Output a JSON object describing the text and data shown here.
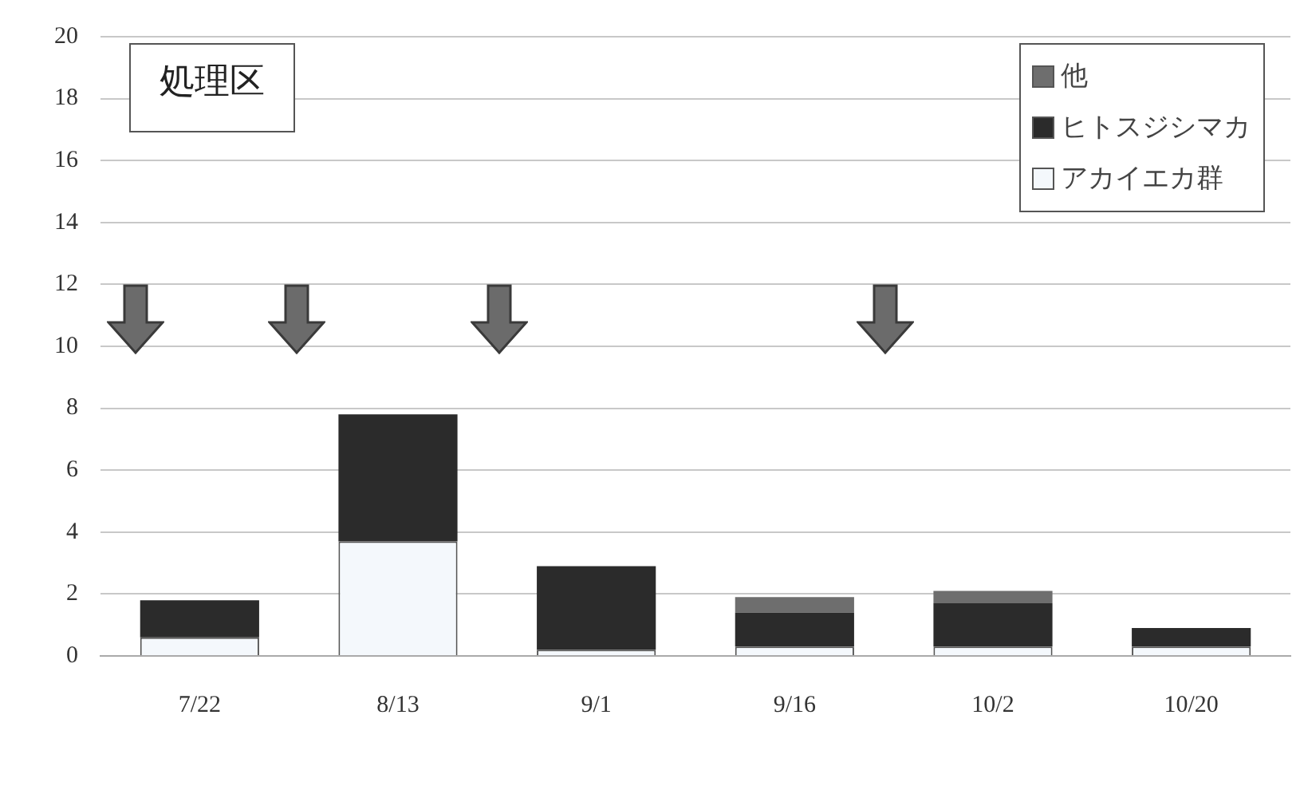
{
  "chart_data": {
    "type": "bar",
    "title": "処理区",
    "stacked": true,
    "categories": [
      "7/22",
      "8/13",
      "9/1",
      "9/16",
      "10/2",
      "10/20"
    ],
    "series": [
      {
        "name": "アカイエカ群",
        "color": "#f4f8fc",
        "values": [
          0.6,
          3.7,
          0.2,
          0.3,
          0.3,
          0.3
        ]
      },
      {
        "name": "ヒトスジシマカ",
        "color": "#2b2b2b",
        "values": [
          1.2,
          4.1,
          2.7,
          1.1,
          1.4,
          0.6
        ]
      },
      {
        "name": "他",
        "color": "#6e6e6e",
        "values": [
          0,
          0,
          0,
          0.5,
          0.4,
          0
        ]
      }
    ],
    "ylim": [
      0,
      20
    ],
    "yticks": [
      0,
      2,
      4,
      6,
      8,
      10,
      12,
      14,
      16,
      18,
      20
    ],
    "grid": "y",
    "legend": "top right"
  }
}
